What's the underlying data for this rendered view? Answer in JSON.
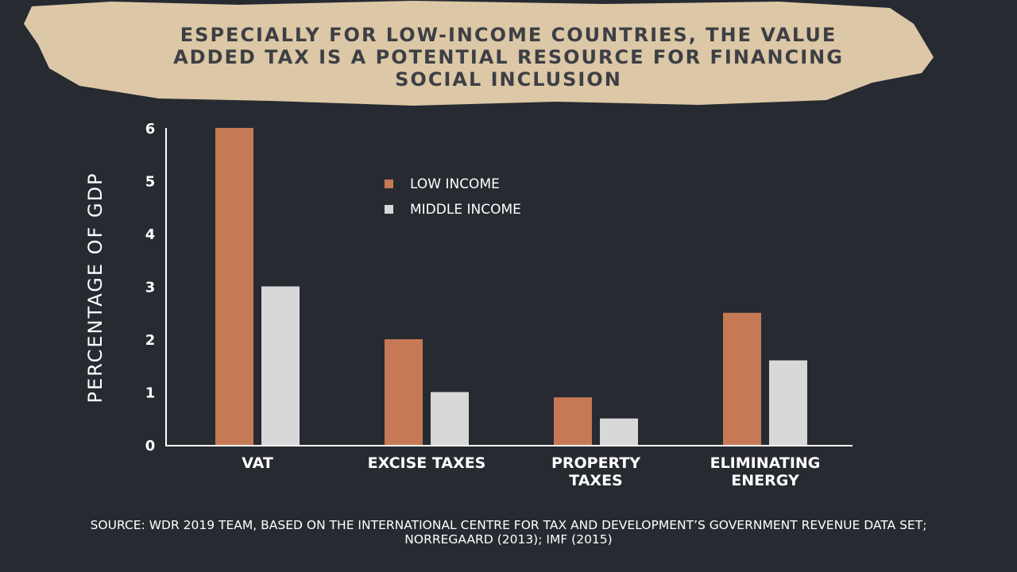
{
  "title_lines": [
    "ESPECIALLY FOR LOW-INCOME COUNTRIES, THE VALUE",
    "ADDED TAX IS A POTENTIAL RESOURCE FOR FINANCING",
    "SOCIAL INCLUSION"
  ],
  "source_lines": [
    "SOURCE: WDR 2019 TEAM, BASED ON THE INTERNATIONAL CENTRE FOR TAX AND DEVELOPMENT’S GOVERNMENT REVENUE DATA SET;",
    "NORREGAARD (2013); IMF (2015)"
  ],
  "colors": {
    "background": "#272a31",
    "banner": "#dcc8a6",
    "title_text": "#3d3f45",
    "low_income": "#c57a55",
    "middle_income": "#d8d8d8",
    "axis": "#ffffff"
  },
  "chart_data": {
    "type": "bar",
    "ylabel": "PERCENTAGE OF GDP",
    "ylim": [
      0,
      6
    ],
    "yticks": [
      0,
      1,
      2,
      3,
      4,
      5,
      6
    ],
    "categories": [
      [
        "VAT"
      ],
      [
        "EXCISE TAXES"
      ],
      [
        "PROPERTY",
        "TAXES"
      ],
      [
        "ELIMINATING",
        "ENERGY"
      ]
    ],
    "series": [
      {
        "name": "LOW INCOME",
        "values": [
          6.0,
          2.0,
          0.9,
          2.5
        ]
      },
      {
        "name": "MIDDLE INCOME",
        "values": [
          3.0,
          1.0,
          0.5,
          1.6
        ]
      }
    ],
    "legend_position": "top-center",
    "grid": false
  }
}
